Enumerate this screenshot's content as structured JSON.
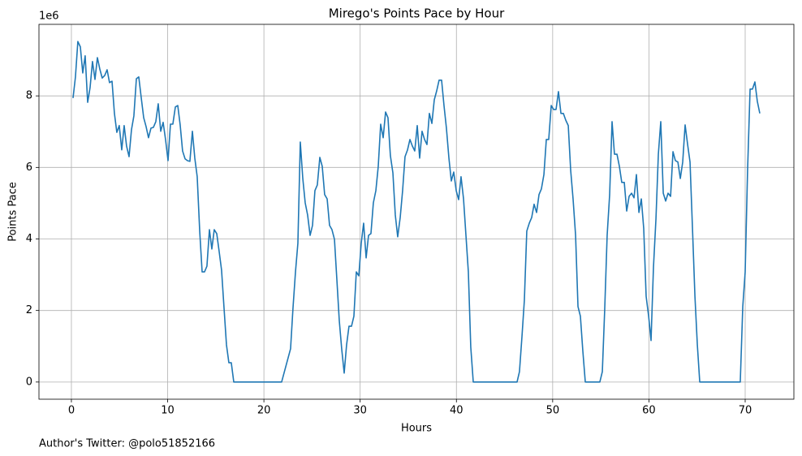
{
  "chart_data": {
    "type": "line",
    "title": "Mirego's Points Pace by Hour",
    "xlabel": "Hours",
    "ylabel": "Points Pace",
    "y_offset_label": "1e6",
    "footer": "Author's Twitter: @polo51852166",
    "color": "#1f77b4",
    "grid": true,
    "xlim": [
      -3.37,
      75.06
    ],
    "ylim": [
      -0.48,
      10.0
    ],
    "xticks": [
      0,
      10,
      20,
      30,
      40,
      50,
      60,
      70
    ],
    "yticks": [
      0,
      2,
      4,
      6,
      8
    ],
    "x": [
      0.17,
      0.42,
      0.67,
      0.93,
      1.18,
      1.43,
      1.69,
      1.94,
      2.19,
      2.45,
      2.7,
      2.95,
      3.2,
      3.46,
      3.71,
      3.96,
      4.22,
      4.47,
      4.72,
      4.97,
      5.23,
      5.48,
      5.73,
      5.99,
      6.24,
      6.49,
      6.75,
      7.0,
      7.25,
      7.51,
      7.76,
      8.01,
      8.27,
      8.52,
      8.77,
      9.02,
      9.28,
      9.53,
      9.78,
      10.04,
      10.29,
      10.54,
      10.8,
      11.05,
      11.3,
      11.55,
      11.81,
      12.06,
      12.31,
      12.57,
      12.82,
      13.07,
      13.33,
      13.58,
      13.83,
      14.08,
      14.34,
      14.59,
      14.84,
      15.1,
      15.35,
      15.6,
      15.86,
      16.11,
      16.36,
      16.61,
      16.87,
      21.84,
      22.77,
      23.02,
      23.28,
      23.53,
      23.78,
      24.04,
      24.29,
      24.54,
      24.8,
      25.05,
      25.3,
      25.55,
      25.81,
      26.06,
      26.31,
      26.57,
      26.82,
      27.07,
      27.33,
      27.58,
      27.83,
      28.08,
      28.34,
      28.59,
      28.84,
      29.1,
      29.35,
      29.6,
      29.86,
      30.11,
      30.36,
      30.62,
      30.87,
      31.12,
      31.37,
      31.63,
      31.88,
      32.13,
      32.39,
      32.64,
      32.89,
      33.14,
      33.4,
      33.65,
      33.9,
      34.16,
      34.41,
      34.66,
      34.92,
      35.17,
      35.42,
      35.67,
      35.93,
      36.18,
      36.43,
      36.69,
      36.94,
      37.19,
      37.45,
      37.7,
      37.95,
      38.2,
      38.46,
      38.71,
      38.96,
      39.22,
      39.47,
      39.72,
      39.98,
      40.23,
      40.48,
      40.74,
      40.99,
      41.24,
      41.49,
      41.75,
      46.3,
      46.55,
      46.81,
      47.06,
      47.31,
      47.57,
      47.82,
      48.07,
      48.33,
      48.58,
      48.83,
      49.09,
      49.34,
      49.59,
      49.85,
      50.1,
      50.35,
      50.6,
      50.86,
      51.11,
      51.36,
      51.62,
      51.87,
      52.12,
      52.38,
      52.63,
      52.88,
      53.13,
      53.39,
      54.9,
      55.16,
      55.41,
      55.66,
      55.92,
      56.17,
      56.42,
      56.68,
      56.93,
      57.18,
      57.44,
      57.69,
      57.94,
      58.2,
      58.45,
      58.7,
      58.96,
      59.21,
      59.46,
      59.71,
      59.97,
      60.22,
      60.47,
      60.73,
      60.98,
      61.23,
      61.49,
      61.74,
      61.99,
      62.25,
      62.5,
      62.75,
      63.01,
      63.26,
      63.51,
      63.76,
      64.02,
      64.27,
      64.52,
      64.78,
      65.03,
      65.28,
      69.49,
      69.75,
      70.0,
      70.25,
      70.51,
      70.76,
      71.01,
      71.26,
      71.52
    ],
    "values": [
      7.94,
      8.53,
      9.52,
      9.37,
      8.64,
      9.12,
      7.82,
      8.23,
      8.96,
      8.46,
      9.07,
      8.75,
      8.5,
      8.57,
      8.73,
      8.37,
      8.41,
      7.51,
      6.98,
      7.17,
      6.49,
      7.17,
      6.6,
      6.3,
      7.05,
      7.44,
      8.48,
      8.53,
      7.96,
      7.39,
      7.14,
      6.83,
      7.1,
      7.12,
      7.28,
      7.78,
      7.01,
      7.26,
      6.78,
      6.19,
      7.21,
      7.21,
      7.69,
      7.73,
      7.19,
      6.46,
      6.24,
      6.19,
      6.17,
      7.01,
      6.26,
      5.74,
      4.22,
      3.08,
      3.08,
      3.24,
      4.26,
      3.72,
      4.26,
      4.15,
      3.65,
      3.13,
      2.06,
      1.04,
      0.54,
      0.54,
      0,
      0,
      0.93,
      2.06,
      3.08,
      3.88,
      6.71,
      5.69,
      5.01,
      4.67,
      4.1,
      4.38,
      5.35,
      5.51,
      6.28,
      6.03,
      5.24,
      5.12,
      4.38,
      4.26,
      3.99,
      2.86,
      1.72,
      0.93,
      0.25,
      1.04,
      1.56,
      1.56,
      1.84,
      3.08,
      2.97,
      3.88,
      4.44,
      3.47,
      4.1,
      4.15,
      5.01,
      5.35,
      6.03,
      7.21,
      6.83,
      7.55,
      7.39,
      6.33,
      5.85,
      4.67,
      4.06,
      4.6,
      5.35,
      6.3,
      6.49,
      6.78,
      6.6,
      6.46,
      7.17,
      6.26,
      7.01,
      6.78,
      6.64,
      7.51,
      7.23,
      7.89,
      8.14,
      8.44,
      8.44,
      7.73,
      7.1,
      6.26,
      5.62,
      5.87,
      5.35,
      5.1,
      5.74,
      5.12,
      4.1,
      3.08,
      0.98,
      0,
      0,
      0.29,
      1.27,
      2.29,
      4.22,
      4.44,
      4.6,
      4.97,
      4.74,
      5.24,
      5.4,
      5.8,
      6.78,
      6.78,
      7.73,
      7.62,
      7.62,
      8.12,
      7.51,
      7.51,
      7.32,
      7.17,
      5.92,
      5.12,
      4.1,
      2.11,
      1.84,
      0.88,
      0,
      0,
      0.29,
      2.06,
      4.1,
      5.24,
      7.28,
      6.37,
      6.37,
      6.03,
      5.58,
      5.58,
      4.78,
      5.19,
      5.28,
      5.15,
      5.8,
      4.74,
      5.12,
      4.29,
      2.4,
      1.84,
      1.16,
      3.2,
      4.56,
      6.37,
      7.28,
      5.28,
      5.06,
      5.28,
      5.19,
      6.44,
      6.19,
      6.15,
      5.69,
      6.15,
      7.19,
      6.64,
      6.15,
      4.33,
      2.4,
      1.04,
      0,
      0,
      2.11,
      3.08,
      5.92,
      8.19,
      8.19,
      8.39,
      7.85,
      7.51
    ]
  }
}
